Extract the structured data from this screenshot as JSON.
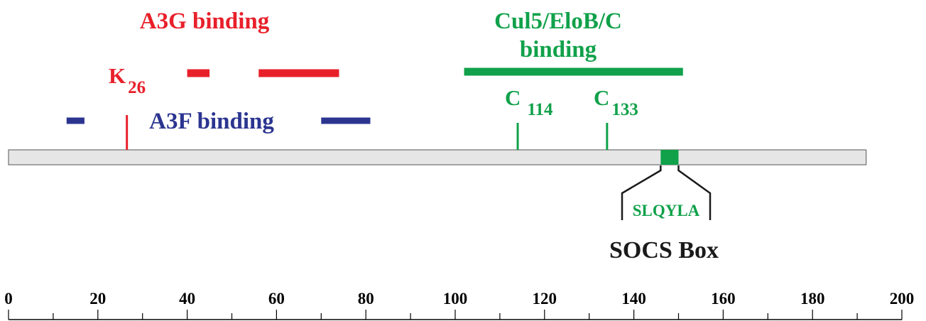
{
  "colors": {
    "a3g": "#e8202a",
    "a3f": "#2b3590",
    "cul5": "#10a14a",
    "axis": "#000000",
    "protein_fill": "#e6e6e6",
    "protein_stroke": "#6e6e6e",
    "socs_text": "#1a1a1a"
  },
  "axis": {
    "min": 0,
    "max": 200,
    "major_step": 20,
    "minor_step": 10,
    "tick_labels": [
      "0",
      "20",
      "40",
      "60",
      "80",
      "100",
      "120",
      "140",
      "160",
      "180",
      "200"
    ]
  },
  "protein": {
    "start": 0,
    "end": 192
  },
  "regions": {
    "a3g": {
      "label": "A3G binding",
      "segments": [
        [
          40,
          45
        ],
        [
          56,
          74
        ]
      ]
    },
    "a3f": {
      "label": "A3F binding",
      "segments": [
        [
          13,
          17
        ],
        [
          70,
          81
        ]
      ]
    },
    "cul5": {
      "label_line1": "Cul5/EloB/C",
      "label_line2": "binding",
      "segments": [
        [
          102,
          151
        ]
      ]
    }
  },
  "residues": [
    {
      "letter": "K",
      "number": "26",
      "position": 26.5,
      "color_key": "a3g"
    },
    {
      "letter": "C",
      "number": "114",
      "position": 114,
      "color_key": "cul5"
    },
    {
      "letter": "C",
      "number": "133",
      "position": 134,
      "color_key": "cul5"
    }
  ],
  "socs_box": {
    "start": 146,
    "end": 150,
    "motif": "SLQYLA",
    "label": "SOCS Box"
  }
}
